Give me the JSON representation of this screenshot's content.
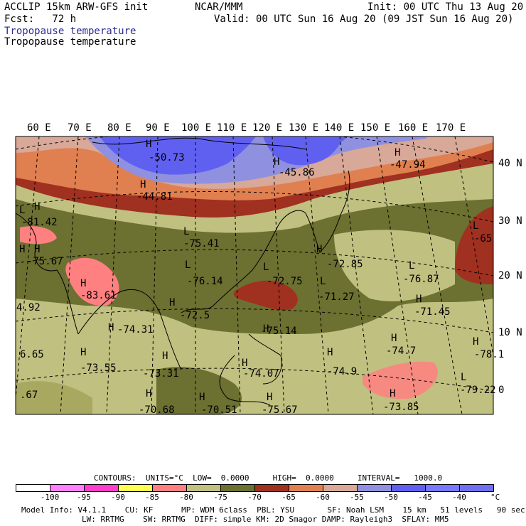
{
  "header": {
    "line1_left": "ACCLIP 15km ARW-GFS init",
    "line1_center": "NCAR/MMM",
    "line1_right": "Init: 00 UTC Thu 13 Aug 20",
    "line2_left": "Fcst:   72 h",
    "line2_right": "Valid: 00 UTC Sun 16 Aug 20 (09 JST Sun 16 Aug 20)",
    "field_title_colored": "Tropopause temperature",
    "field_title": "Tropopause temperature",
    "title_color": "#2a2a9a"
  },
  "map": {
    "lon_labels": [
      "60 E",
      "70 E",
      "80 E",
      "90 E",
      "100 E",
      "110 E",
      "120 E",
      "130 E",
      "140 E",
      "150 E",
      "160 E",
      "170 E"
    ],
    "lat_labels": [
      "40 N",
      "30 N",
      "20 N",
      "10 N",
      "0"
    ],
    "highs": [
      "H",
      "H",
      "H",
      "H",
      "H",
      "H",
      "H",
      "H",
      "H",
      "H",
      "H",
      "H",
      "H",
      "H",
      "H",
      "H",
      "H",
      "H",
      "H",
      "H",
      "H",
      "H",
      "H"
    ],
    "lows": [
      "L",
      "L",
      "L",
      "L",
      "L",
      "L",
      "L",
      "L"
    ],
    "values": [
      "-50.73",
      "-44.81",
      "-45.86",
      "-47.94",
      "-81.42",
      "-75.67",
      "-83.61",
      "-75.41",
      "-76.14",
      "-72.75",
      "-72.85",
      "-71.27",
      "-76.87",
      "-71.45",
      "-65",
      "4.92",
      "-74.31",
      "-72.5",
      "-75.14",
      "-74.7",
      "-78.1",
      "6.65",
      "-73.55",
      "-73.31",
      "-74.07",
      "-74.9",
      "-79.22",
      "-73.85",
      ".67",
      "-70.68",
      "-70.51",
      "-75.67"
    ],
    "colors": {
      "lt100": "#ffffff",
      "m100": "#ff80ff",
      "m95": "#ff3ccc",
      "m90": "#ffff50",
      "m85": "#ff8080",
      "m80": "#c0c080",
      "m75": "#a8a860",
      "m70": "#6c7030",
      "m65": "#a03020",
      "m60": "#e08050",
      "m55": "#d8a898",
      "m50": "#9090e0",
      "m45": "#6060f0",
      "m40": "#7878ff"
    }
  },
  "colorbar": {
    "contours_label": "CONTOURS:  UNITS=°C  LOW=  0.0000     HIGH=  0.0000     INTERVAL=   1000.0",
    "tick_labels": [
      "-100",
      "-95",
      "-90",
      "-85",
      "-80",
      "-75",
      "-70",
      "-65",
      "-60",
      "-55",
      "-50",
      "-45",
      "-40"
    ],
    "unit": "°C",
    "swatches": [
      "#ffffff",
      "#ff80ff",
      "#ff3ccc",
      "#ffff50",
      "#ff8080",
      "#c0c080",
      "#6c7030",
      "#a03020",
      "#e08050",
      "#d8a898",
      "#9090e0",
      "#6060f0",
      "#7878ff",
      "#7070f0"
    ]
  },
  "footer": {
    "line1": "Model Info: V4.1.1    CU: KF      MP: WDM 6class  PBL: YSU       SF: Noah LSM    15 km   51 levels   90 sec",
    "line2": "LW: RRTMG    SW: RRTMG  DIFF: simple KM: 2D Smagor DAMP: Rayleigh3  SFLAY: MM5"
  }
}
